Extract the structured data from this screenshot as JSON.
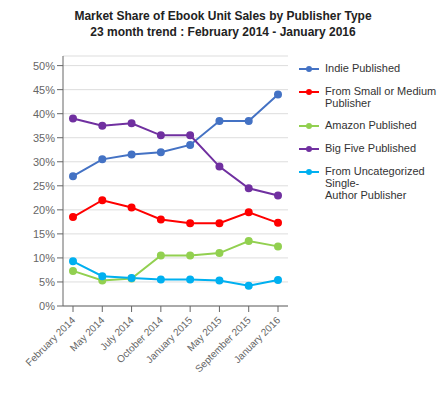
{
  "chart_data": {
    "type": "line",
    "title": "Market Share of Ebook Unit Sales by Publisher Type",
    "subtitle": "23 month trend : February 2014 - January 2016",
    "categories": [
      "February 2014",
      "May 2014",
      "July 2014",
      "October 2014",
      "January 2015",
      "May 2015",
      "September 2015",
      "January 2016"
    ],
    "series": [
      {
        "name": "Indie Published",
        "color": "#4472C4",
        "values": [
          0.27,
          0.305,
          0.315,
          0.32,
          0.335,
          0.385,
          0.385,
          0.44
        ]
      },
      {
        "name": "From Small or Medium\nPublisher",
        "color": "#FF0000",
        "values": [
          0.185,
          0.22,
          0.205,
          0.18,
          0.172,
          0.172,
          0.195,
          0.173
        ]
      },
      {
        "name": "Amazon Published",
        "color": "#92D050",
        "values": [
          0.073,
          0.053,
          0.057,
          0.105,
          0.105,
          0.11,
          0.135,
          0.124
        ]
      },
      {
        "name": "Big Five Published",
        "color": "#7030A0",
        "values": [
          0.39,
          0.375,
          0.38,
          0.355,
          0.355,
          0.29,
          0.245,
          0.23
        ]
      },
      {
        "name": "From Uncategorized Single-\nAuthor Publisher",
        "color": "#00B0F0",
        "values": [
          0.093,
          0.062,
          0.058,
          0.055,
          0.055,
          0.053,
          0.042,
          0.054
        ]
      }
    ],
    "ylim": [
      0,
      0.52
    ],
    "yticks": [
      {
        "value": 0,
        "label": "0%"
      },
      {
        "value": 0.05,
        "label": "5%"
      },
      {
        "value": 0.1,
        "label": "10%"
      },
      {
        "value": 0.15,
        "label": "15%"
      },
      {
        "value": 0.2,
        "label": "20%"
      },
      {
        "value": 0.25,
        "label": "25%"
      },
      {
        "value": 0.3,
        "label": "30%"
      },
      {
        "value": 0.35,
        "label": "35%"
      },
      {
        "value": 0.4,
        "label": "40%"
      },
      {
        "value": 0.45,
        "label": "45%"
      },
      {
        "value": 0.5,
        "label": "50%"
      }
    ],
    "grid": true,
    "legend": "right",
    "marker": "circle"
  }
}
